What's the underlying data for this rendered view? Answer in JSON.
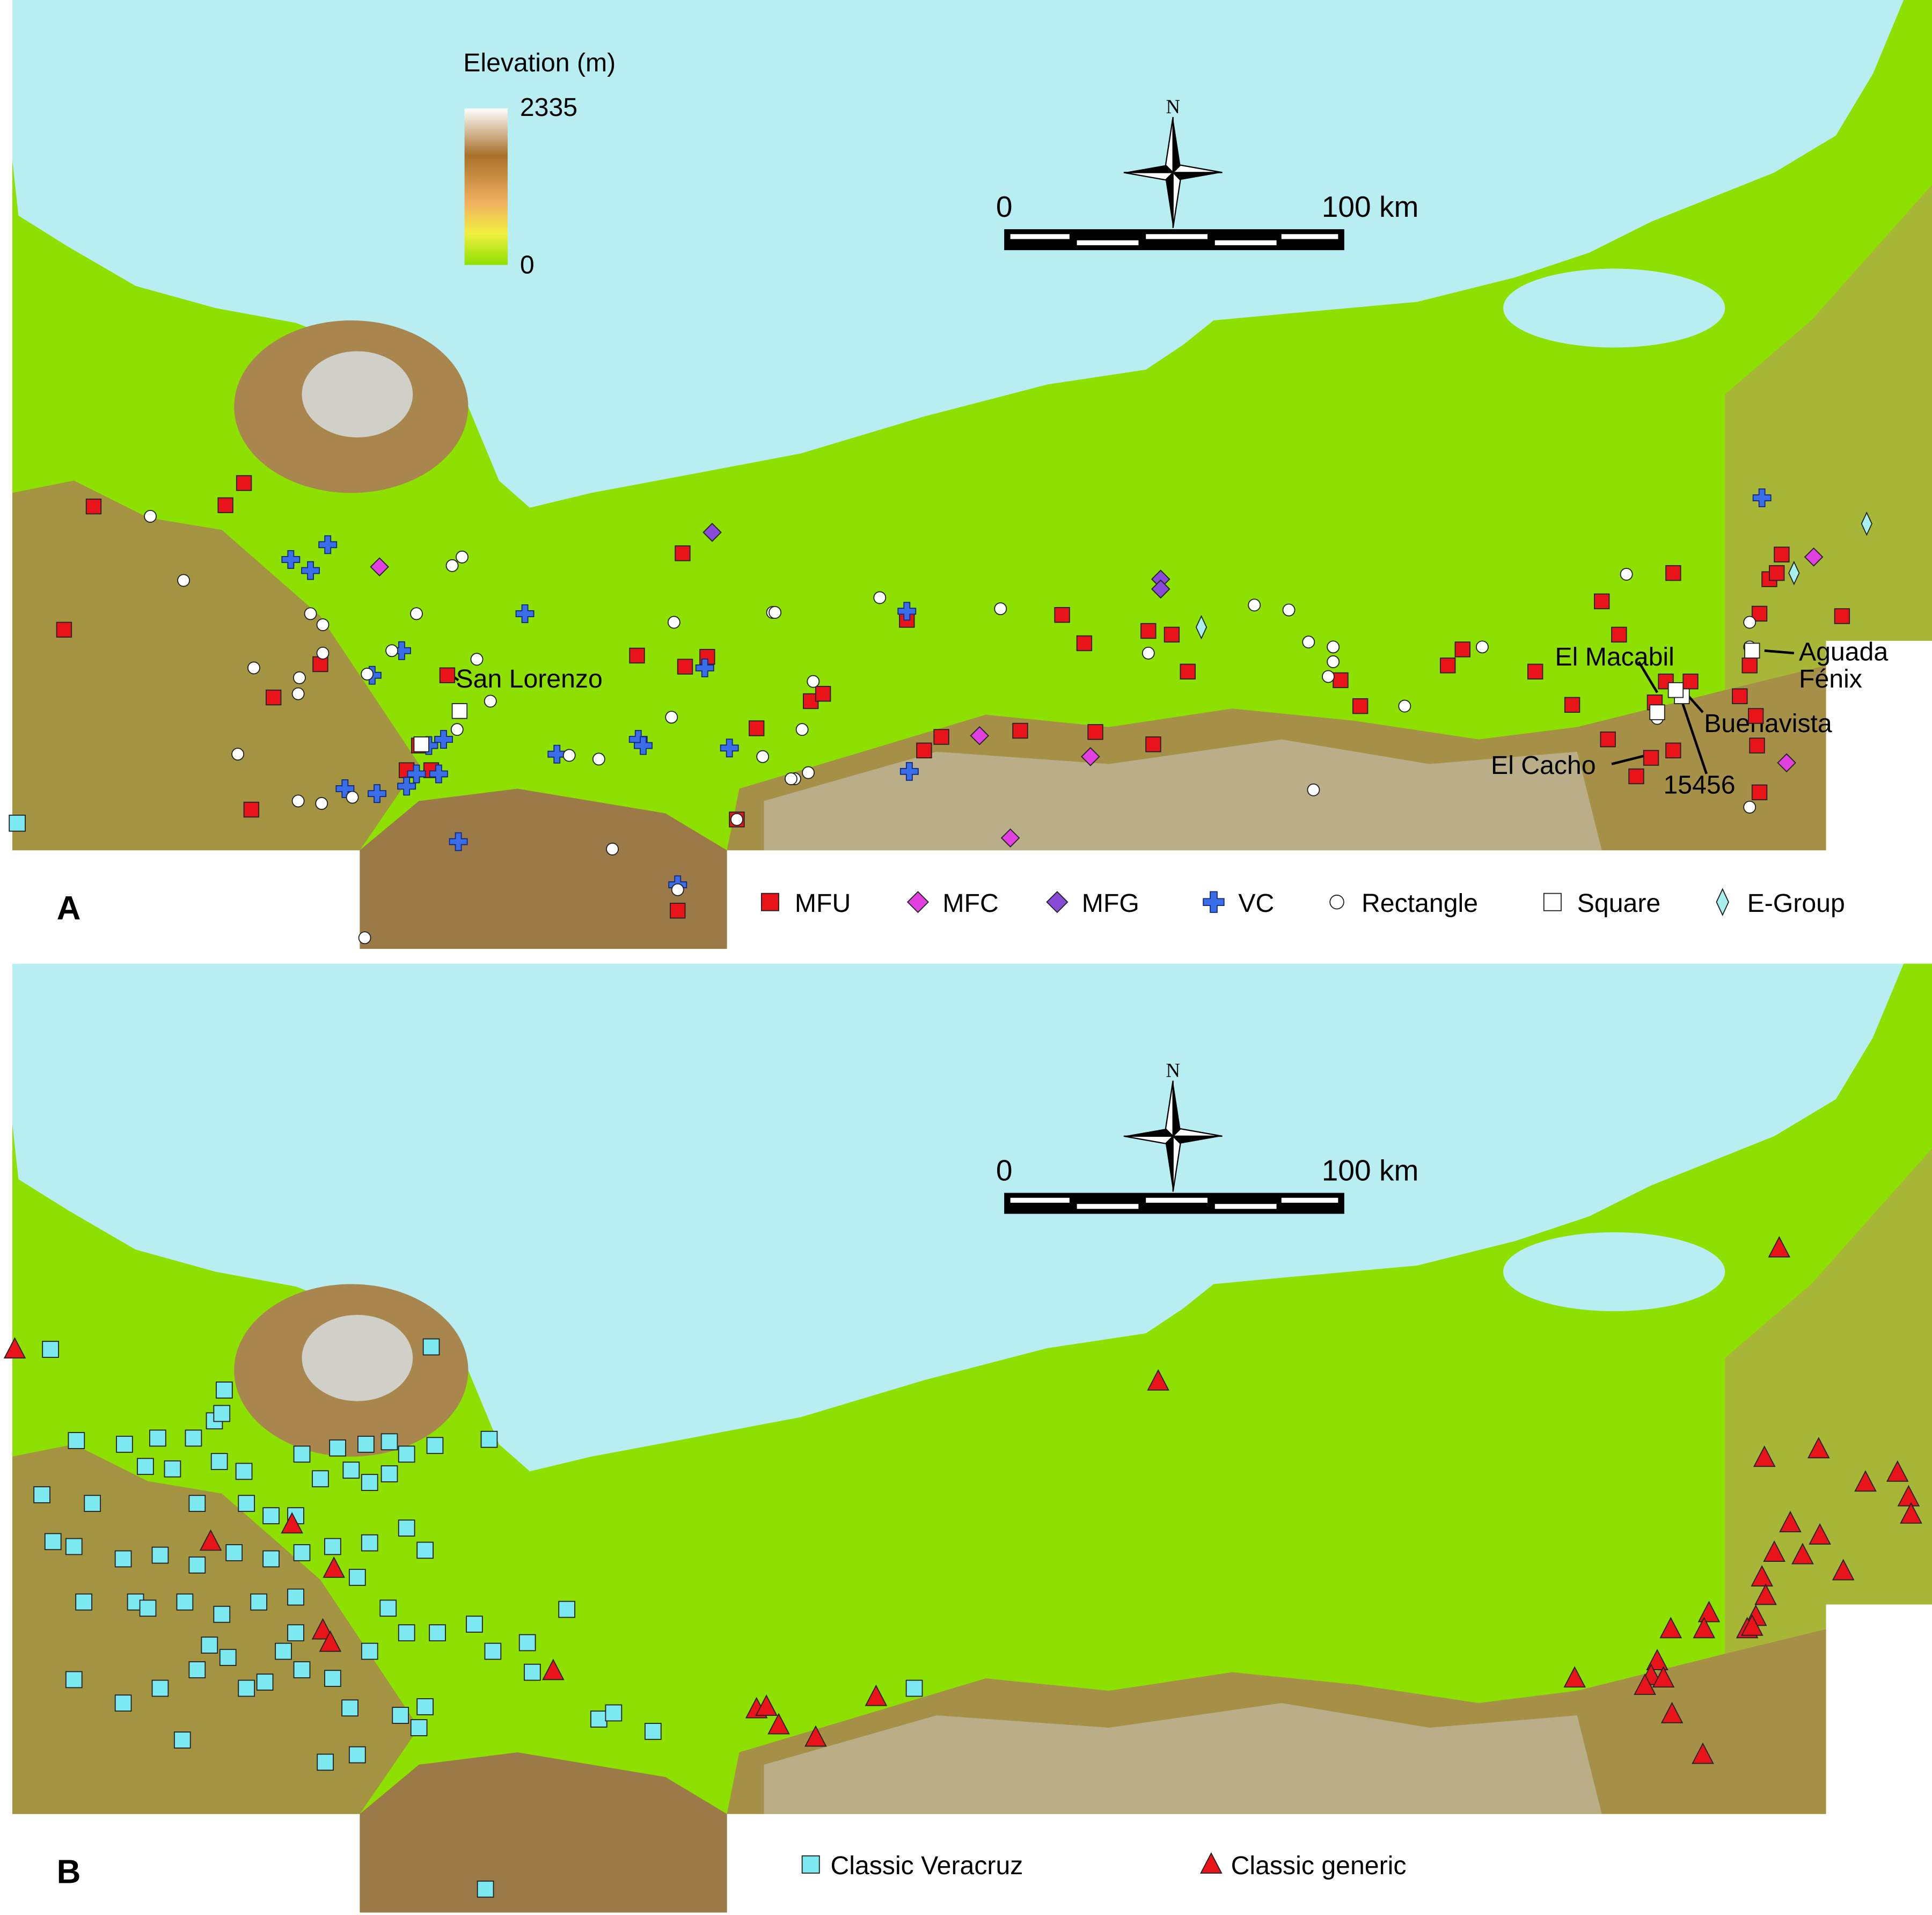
{
  "panels": [
    {
      "label": "A",
      "elevation_legend": {
        "title": "Elevation (m)",
        "max": 2335,
        "min": 0
      },
      "north": "N",
      "scale_bar": {
        "start": "0",
        "end": "100 km"
      },
      "sites": [
        {
          "lines": [
            "San Lorenzo"
          ]
        },
        {
          "lines": [
            "El Macabil"
          ]
        },
        {
          "lines": [
            "Aguada",
            "Fénix"
          ]
        },
        {
          "lines": [
            "Buenavista"
          ]
        },
        {
          "lines": [
            "El Cacho"
          ]
        },
        {
          "lines": [
            "15456"
          ]
        }
      ],
      "legend": [
        {
          "name": "MFU",
          "color": "#e8141a",
          "marker": "square"
        },
        {
          "name": "MFC",
          "color": "#e040e0",
          "marker": "diamond"
        },
        {
          "name": "MFG",
          "color": "#8a4ad8",
          "marker": "diamond"
        },
        {
          "name": "VC",
          "color": "#3a6ee8",
          "marker": "cross"
        },
        {
          "name": "Rectangle",
          "color": "#ffffff",
          "marker": "circle"
        },
        {
          "name": "Square",
          "color": "#ffffff",
          "marker": "square"
        },
        {
          "name": "E-Group",
          "color": "#a8f0f0",
          "marker": "slim-diamond"
        }
      ]
    },
    {
      "label": "B",
      "north": "N",
      "scale_bar": {
        "start": "0",
        "end": "100 km"
      },
      "legend": [
        {
          "name": "Classic Veracruz",
          "color": "#7ce8f0",
          "marker": "square"
        },
        {
          "name": "Classic generic",
          "color": "#e8141a",
          "marker": "triangle"
        }
      ]
    }
  ]
}
